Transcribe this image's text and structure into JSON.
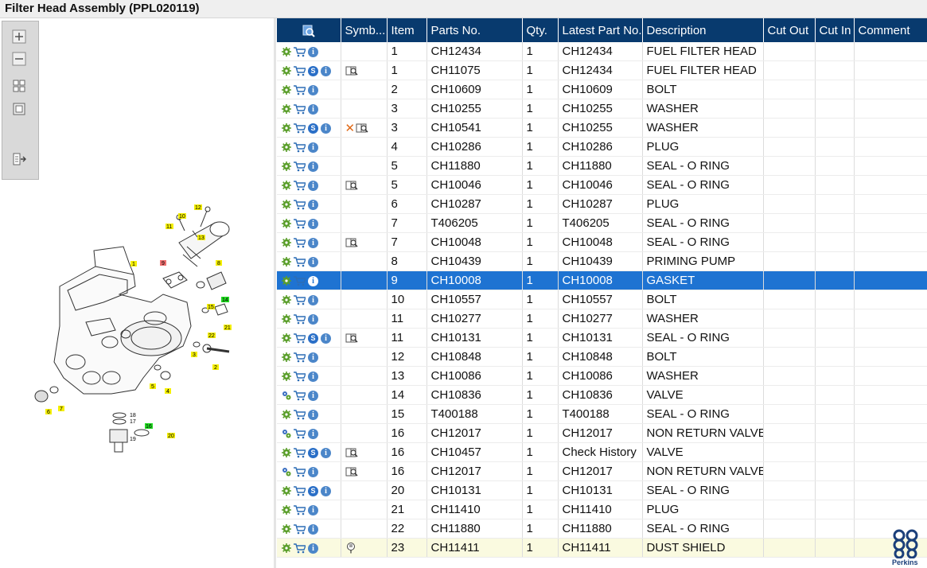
{
  "title": "Filter Head Assembly (PPL020119)",
  "toolbar": {
    "zoom_in": "zoom-in",
    "zoom_out": "zoom-out",
    "fit": "fit-all",
    "actual": "actual-size",
    "export": "export"
  },
  "table": {
    "headers": [
      "Symb...",
      "Item",
      "Parts No.",
      "Qty.",
      "Latest Part No.",
      "Description",
      "Cut Out",
      "Cut In",
      "Comment"
    ],
    "rows": [
      {
        "icons": [
          "gear",
          "cart",
          "info"
        ],
        "symb": "",
        "item": "1",
        "part": "CH12434",
        "qty": "1",
        "latest": "CH12434",
        "desc": "FUEL FILTER HEAD"
      },
      {
        "icons": [
          "gear",
          "cart",
          "s",
          "info"
        ],
        "symb": "book",
        "item": "1",
        "part": "CH11075",
        "qty": "1",
        "latest": "CH12434",
        "desc": "FUEL FILTER HEAD"
      },
      {
        "icons": [
          "gear",
          "cart",
          "info"
        ],
        "symb": "",
        "item": "2",
        "part": "CH10609",
        "qty": "1",
        "latest": "CH10609",
        "desc": "BOLT"
      },
      {
        "icons": [
          "gear",
          "cart",
          "info"
        ],
        "symb": "",
        "item": "3",
        "part": "CH10255",
        "qty": "1",
        "latest": "CH10255",
        "desc": "WASHER"
      },
      {
        "icons": [
          "gear",
          "cart",
          "s",
          "info"
        ],
        "symb": "xbook",
        "item": "3",
        "part": "CH10541",
        "qty": "1",
        "latest": "CH10255",
        "desc": "WASHER"
      },
      {
        "icons": [
          "gear",
          "cart",
          "info"
        ],
        "symb": "",
        "item": "4",
        "part": "CH10286",
        "qty": "1",
        "latest": "CH10286",
        "desc": "PLUG"
      },
      {
        "icons": [
          "gear",
          "cart",
          "info"
        ],
        "symb": "",
        "item": "5",
        "part": "CH11880",
        "qty": "1",
        "latest": "CH11880",
        "desc": "SEAL - O RING"
      },
      {
        "icons": [
          "gear",
          "cart",
          "info"
        ],
        "symb": "book",
        "item": "5",
        "part": "CH10046",
        "qty": "1",
        "latest": "CH10046",
        "desc": "SEAL - O RING"
      },
      {
        "icons": [
          "gear",
          "cart",
          "info"
        ],
        "symb": "",
        "item": "6",
        "part": "CH10287",
        "qty": "1",
        "latest": "CH10287",
        "desc": "PLUG"
      },
      {
        "icons": [
          "gear",
          "cart",
          "info"
        ],
        "symb": "",
        "item": "7",
        "part": "T406205",
        "qty": "1",
        "latest": "T406205",
        "desc": "SEAL - O RING"
      },
      {
        "icons": [
          "gear",
          "cart",
          "info"
        ],
        "symb": "book",
        "item": "7",
        "part": "CH10048",
        "qty": "1",
        "latest": "CH10048",
        "desc": "SEAL - O RING"
      },
      {
        "icons": [
          "gear",
          "cart",
          "info"
        ],
        "symb": "",
        "item": "8",
        "part": "CH10439",
        "qty": "1",
        "latest": "CH10439",
        "desc": "PRIMING PUMP"
      },
      {
        "icons": [
          "gear",
          "cart",
          "info"
        ],
        "symb": "",
        "item": "9",
        "part": "CH10008",
        "qty": "1",
        "latest": "CH10008",
        "desc": "GASKET",
        "selected": true
      },
      {
        "icons": [
          "gear",
          "cart",
          "info"
        ],
        "symb": "",
        "item": "10",
        "part": "CH10557",
        "qty": "1",
        "latest": "CH10557",
        "desc": "BOLT"
      },
      {
        "icons": [
          "gear",
          "cart",
          "info"
        ],
        "symb": "",
        "item": "11",
        "part": "CH10277",
        "qty": "1",
        "latest": "CH10277",
        "desc": "WASHER"
      },
      {
        "icons": [
          "gear",
          "cart",
          "s",
          "info"
        ],
        "symb": "book",
        "item": "11",
        "part": "CH10131",
        "qty": "1",
        "latest": "CH10131",
        "desc": "SEAL - O RING"
      },
      {
        "icons": [
          "gear",
          "cart",
          "info"
        ],
        "symb": "",
        "item": "12",
        "part": "CH10848",
        "qty": "1",
        "latest": "CH10848",
        "desc": "BOLT"
      },
      {
        "icons": [
          "gear",
          "cart",
          "info"
        ],
        "symb": "",
        "item": "13",
        "part": "CH10086",
        "qty": "1",
        "latest": "CH10086",
        "desc": "WASHER"
      },
      {
        "icons": [
          "gears",
          "cart",
          "info"
        ],
        "symb": "",
        "item": "14",
        "part": "CH10836",
        "qty": "1",
        "latest": "CH10836",
        "desc": "VALVE"
      },
      {
        "icons": [
          "gear",
          "cart",
          "info"
        ],
        "symb": "",
        "item": "15",
        "part": "T400188",
        "qty": "1",
        "latest": "T400188",
        "desc": "SEAL - O RING"
      },
      {
        "icons": [
          "gears",
          "cart",
          "info"
        ],
        "symb": "",
        "item": "16",
        "part": "CH12017",
        "qty": "1",
        "latest": "CH12017",
        "desc": "NON RETURN VALVE"
      },
      {
        "icons": [
          "gear",
          "cart",
          "s",
          "info"
        ],
        "symb": "book",
        "item": "16",
        "part": "CH10457",
        "qty": "1",
        "latest": "Check History",
        "desc": "VALVE"
      },
      {
        "icons": [
          "gears",
          "cart",
          "info"
        ],
        "symb": "book",
        "item": "16",
        "part": "CH12017",
        "qty": "1",
        "latest": "CH12017",
        "desc": "NON RETURN VALVE"
      },
      {
        "icons": [
          "gear",
          "cart",
          "s",
          "info"
        ],
        "symb": "",
        "item": "20",
        "part": "CH10131",
        "qty": "1",
        "latest": "CH10131",
        "desc": "SEAL - O RING"
      },
      {
        "icons": [
          "gear",
          "cart",
          "info"
        ],
        "symb": "",
        "item": "21",
        "part": "CH11410",
        "qty": "1",
        "latest": "CH11410",
        "desc": "PLUG"
      },
      {
        "icons": [
          "gear",
          "cart",
          "info"
        ],
        "symb": "",
        "item": "22",
        "part": "CH11880",
        "qty": "1",
        "latest": "CH11880",
        "desc": "SEAL - O RING"
      },
      {
        "icons": [
          "gear",
          "cart",
          "info"
        ],
        "symb": "comment",
        "item": "23",
        "part": "CH11411",
        "qty": "1",
        "latest": "CH11411",
        "desc": "DUST SHIELD",
        "highlight": true
      }
    ]
  },
  "diagram_labels": [
    "1",
    "2",
    "3",
    "4",
    "5",
    "6",
    "7",
    "8",
    "9",
    "10",
    "11",
    "12",
    "13",
    "14",
    "15",
    "16",
    "17",
    "18",
    "19",
    "20",
    "21",
    "22"
  ],
  "logo_text": "Perkins",
  "colors": {
    "header_bg": "#083a6e",
    "selected_row": "#1e73d2",
    "highlight_row": "#fafae0",
    "label_yellow": "#f5f000",
    "label_green": "#22dd22",
    "label_red": "#f07070"
  }
}
